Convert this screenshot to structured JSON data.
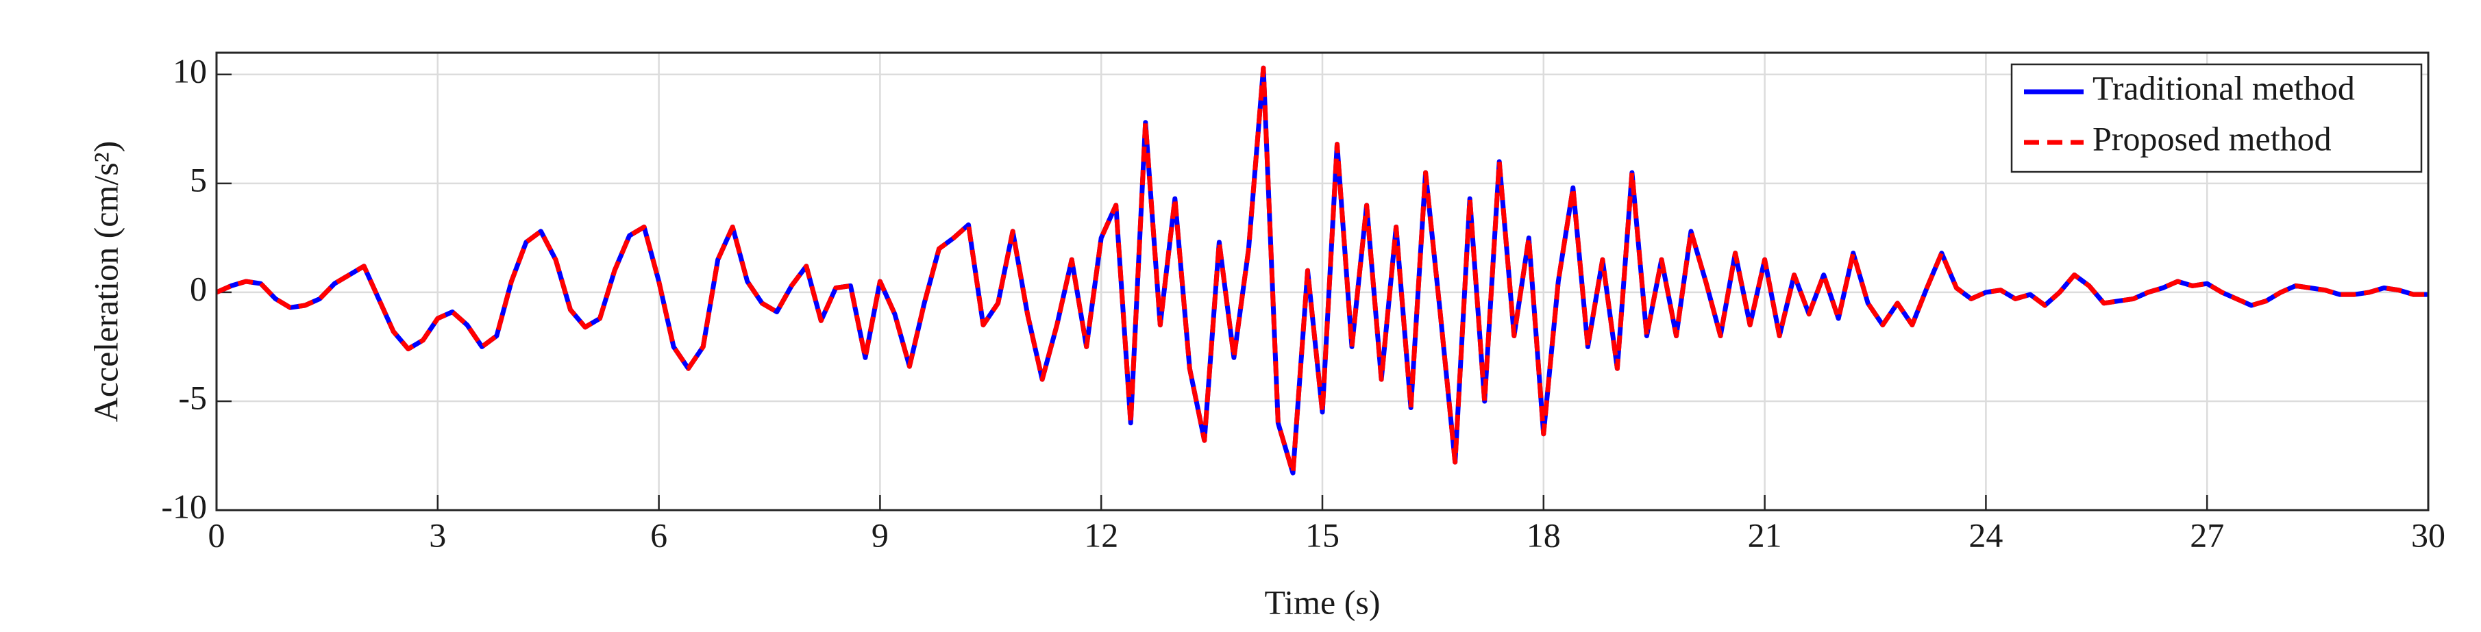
{
  "chart_data": {
    "type": "line",
    "xlabel": "Time (s)",
    "ylabel": "Acceleration (cm/s²)",
    "x": [
      0,
      0.2,
      0.4,
      0.6,
      0.8,
      1,
      1.2,
      1.4,
      1.6,
      1.8,
      2,
      2.2,
      2.4,
      2.6,
      2.8,
      3,
      3.2,
      3.4,
      3.6,
      3.8,
      4,
      4.2,
      4.4,
      4.6,
      4.8,
      5,
      5.2,
      5.4,
      5.6,
      5.8,
      6,
      6.2,
      6.4,
      6.6,
      6.8,
      7,
      7.2,
      7.4,
      7.6,
      7.8,
      8,
      8.2,
      8.4,
      8.6,
      8.8,
      9,
      9.2,
      9.4,
      9.6,
      9.8,
      10,
      10.2,
      10.4,
      10.6,
      10.8,
      11,
      11.2,
      11.4,
      11.6,
      11.8,
      12,
      12.2,
      12.4,
      12.6,
      12.8,
      13,
      13.2,
      13.4,
      13.6,
      13.8,
      14,
      14.2,
      14.4,
      14.6,
      14.8,
      15,
      15.2,
      15.4,
      15.6,
      15.8,
      16,
      16.2,
      16.4,
      16.6,
      16.8,
      17,
      17.2,
      17.4,
      17.6,
      17.8,
      18,
      18.2,
      18.4,
      18.6,
      18.8,
      19,
      19.2,
      19.4,
      19.6,
      19.8,
      20,
      20.2,
      20.4,
      20.6,
      20.8,
      21,
      21.2,
      21.4,
      21.6,
      21.8,
      22,
      22.2,
      22.4,
      22.6,
      22.8,
      23,
      23.2,
      23.4,
      23.6,
      23.8,
      24,
      24.2,
      24.4,
      24.6,
      24.8,
      25,
      25.2,
      25.4,
      25.6,
      25.8,
      26,
      26.2,
      26.4,
      26.6,
      26.8,
      27,
      27.2,
      27.4,
      27.6,
      27.8,
      28,
      28.2,
      28.4,
      28.6,
      28.8,
      29,
      29.2,
      29.4,
      29.6,
      29.8,
      30
    ],
    "series": [
      {
        "name": "Traditional method",
        "color": "#0000ff",
        "dash": false,
        "values": [
          0,
          0.3,
          0.5,
          0.4,
          -0.3,
          -0.7,
          -0.6,
          -0.3,
          0.4,
          0.8,
          1.2,
          -0.3,
          -1.8,
          -2.6,
          -2.2,
          -1.2,
          -0.9,
          -1.5,
          -2.5,
          -2,
          0.5,
          2.3,
          2.8,
          1.5,
          -0.8,
          -1.6,
          -1.2,
          1,
          2.6,
          3,
          0.5,
          -2.5,
          -3.5,
          -2.5,
          1.5,
          3,
          0.5,
          -0.5,
          -0.9,
          0.3,
          1.2,
          -1.3,
          0.2,
          0.3,
          -3,
          0.5,
          -1,
          -3.4,
          -0.5,
          2,
          2.5,
          3.1,
          -1.5,
          -0.5,
          2.8,
          -1,
          -4,
          -1.5,
          1.5,
          -2.5,
          2.5,
          4,
          -6,
          7.8,
          -1.5,
          4.3,
          -3.5,
          -6.8,
          2.3,
          -3,
          2,
          10.3,
          -6,
          -8.3,
          1,
          -5.5,
          6.8,
          -2.5,
          4,
          -4,
          3,
          -5.3,
          5.5,
          -1,
          -7.8,
          4.3,
          -5,
          6,
          -2,
          2.5,
          -6.5,
          0.5,
          4.8,
          -2.5,
          1.5,
          -3.5,
          5.5,
          -2,
          1.5,
          -2,
          2.8,
          0.5,
          -2,
          1.8,
          -1.5,
          1.5,
          -2,
          0.8,
          -1,
          0.8,
          -1.2,
          1.8,
          -0.5,
          -1.5,
          -0.5,
          -1.5,
          0.2,
          1.8,
          0.2,
          -0.3,
          0,
          0.1,
          -0.3,
          -0.1,
          -0.6,
          0,
          0.8,
          0.3,
          -0.5,
          -0.4,
          -0.3,
          0,
          0.2,
          0.5,
          0.3,
          0.4,
          0,
          -0.3,
          -0.6,
          -0.4,
          0,
          0.3,
          0.2,
          0.1,
          -0.1,
          -0.1,
          0,
          0.2,
          0.1,
          -0.1,
          -0.1
        ]
      },
      {
        "name": "Proposed method",
        "color": "#ff0000",
        "dash": true,
        "values": [
          0,
          0.3,
          0.5,
          0.4,
          -0.3,
          -0.7,
          -0.6,
          -0.3,
          0.4,
          0.8,
          1.2,
          -0.3,
          -1.8,
          -2.6,
          -2.2,
          -1.2,
          -0.9,
          -1.5,
          -2.5,
          -2,
          0.5,
          2.3,
          2.8,
          1.5,
          -0.8,
          -1.6,
          -1.2,
          1,
          2.6,
          3,
          0.5,
          -2.5,
          -3.5,
          -2.5,
          1.5,
          3,
          0.5,
          -0.5,
          -0.9,
          0.3,
          1.2,
          -1.3,
          0.2,
          0.3,
          -3,
          0.5,
          -1,
          -3.4,
          -0.5,
          2,
          2.5,
          3.1,
          -1.5,
          -0.5,
          2.8,
          -1,
          -4,
          -1.5,
          1.5,
          -2.5,
          2.5,
          4,
          -6,
          7.8,
          -1.5,
          4.3,
          -3.5,
          -6.8,
          2.3,
          -3,
          2,
          10.3,
          -6,
          -8.3,
          1,
          -5.5,
          6.8,
          -2.5,
          4,
          -4,
          3,
          -5.3,
          5.5,
          -1,
          -7.8,
          4.3,
          -5,
          6,
          -2,
          2.5,
          -6.5,
          0.5,
          4.8,
          -2.5,
          1.5,
          -3.5,
          5.5,
          -2,
          1.5,
          -2,
          2.8,
          0.5,
          -2,
          1.8,
          -1.5,
          1.5,
          -2,
          0.8,
          -1,
          0.8,
          -1.2,
          1.8,
          -0.5,
          -1.5,
          -0.5,
          -1.5,
          0.2,
          1.8,
          0.2,
          -0.3,
          0,
          0.1,
          -0.3,
          -0.1,
          -0.6,
          0,
          0.8,
          0.3,
          -0.5,
          -0.4,
          -0.3,
          0,
          0.2,
          0.5,
          0.3,
          0.4,
          0,
          -0.3,
          -0.6,
          -0.4,
          0,
          0.3,
          0.2,
          0.1,
          -0.1,
          -0.1,
          0,
          0.2,
          0.1,
          -0.1,
          -0.1
        ]
      }
    ],
    "xlim": [
      0,
      30
    ],
    "xticks": [
      0,
      3,
      6,
      9,
      12,
      15,
      18,
      21,
      24,
      27,
      30
    ],
    "ylim": [
      -10,
      11
    ],
    "yticks": [
      -10,
      -5,
      0,
      5,
      10
    ],
    "grid": true,
    "legend": "upper right"
  }
}
